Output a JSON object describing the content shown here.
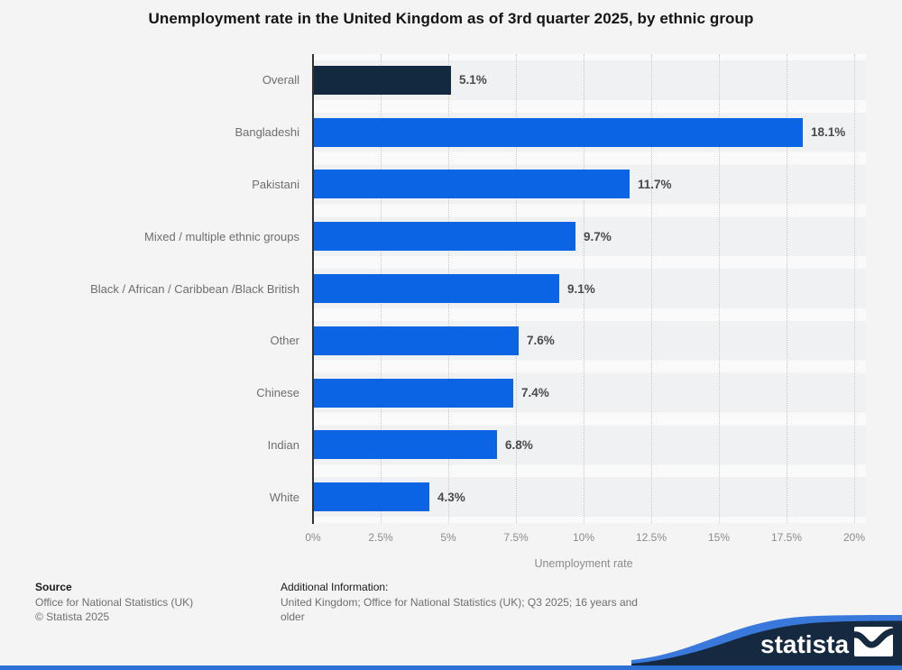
{
  "title": "Unemployment rate in the United Kingdom as of 3rd quarter 2025, by ethnic group",
  "chart_data": {
    "type": "bar",
    "orientation": "horizontal",
    "title": "Unemployment rate in the United Kingdom as of 3rd quarter 2025, by ethnic group",
    "categories": [
      "Overall",
      "Bangladeshi",
      "Pakistani",
      "Mixed / multiple ethnic groups",
      "Black / African / Caribbean /Black British",
      "Other",
      "Chinese",
      "Indian",
      "White"
    ],
    "values": [
      5.1,
      18.1,
      11.7,
      9.7,
      9.1,
      7.6,
      7.4,
      6.8,
      4.3
    ],
    "value_labels": [
      "5.1%",
      "18.1%",
      "11.7%",
      "9.7%",
      "9.1%",
      "7.6%",
      "7.4%",
      "6.8%",
      "4.3%"
    ],
    "xlabel": "Unemployment rate",
    "ylabel": "",
    "xlim": [
      0,
      20
    ],
    "x_ticks": [
      "0%",
      "2.5%",
      "5%",
      "7.5%",
      "10%",
      "12.5%",
      "15%",
      "17.5%",
      "20%"
    ],
    "x_tick_values": [
      0,
      2.5,
      5,
      7.5,
      10,
      12.5,
      15,
      17.5,
      20
    ],
    "grid": "vertical-dotted",
    "legend": "none",
    "colors": {
      "bar": "#0b64e4",
      "overall_bar": "#132940"
    }
  },
  "footer": {
    "source_heading": "Source",
    "source_line1": "Office for National Statistics (UK)",
    "source_line2": "© Statista 2025",
    "additional_heading": "Additional Information:",
    "additional_text": "United Kingdom; Office for National Statistics (UK); Q3 2025; 16 years and older"
  },
  "branding": {
    "logo_text": "statista",
    "logo_icon": "statista-wave-icon",
    "badge_navy": "#152a40",
    "badge_blue": "#3a79dc",
    "bottom_bar_color": "#2e71d5"
  },
  "style_colors": {
    "page_bg": "#f4f4f5",
    "row_stripe": "#f0f1f3",
    "row_gap": "#fafafa",
    "axis_line": "#333333",
    "gridline": "#c9c9c9",
    "category_label": "#6e6e6e",
    "value_label": "#4a4a4a",
    "tick_label": "#8b8b8b"
  }
}
